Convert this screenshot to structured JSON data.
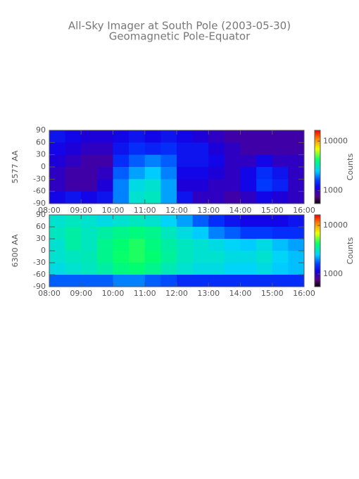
{
  "title": "All-Sky Imager at South Pole (2003-05-30)",
  "subtitle": "Geomagnetic Pole-Equator",
  "chart_data": [
    {
      "type": "heatmap",
      "ylabel": "5577 AA",
      "zlabel": "Counts",
      "log_z": true,
      "xlim": [
        8,
        16
      ],
      "xticks": [
        {
          "value": 8,
          "label": "08:00"
        },
        {
          "value": 9,
          "label": "09:00"
        },
        {
          "value": 10,
          "label": "10:00"
        },
        {
          "value": 11,
          "label": "11:00"
        },
        {
          "value": 12,
          "label": "12:00"
        },
        {
          "value": 13,
          "label": "13:00"
        },
        {
          "value": 14,
          "label": "14:00"
        },
        {
          "value": 15,
          "label": "15:00"
        },
        {
          "value": 16,
          "label": "16:00"
        }
      ],
      "ylim": [
        -90,
        90
      ],
      "yticks": [
        -90,
        -60,
        -30,
        0,
        30,
        60,
        90
      ],
      "zlim": [
        550,
        16500
      ],
      "zticks": [
        1000,
        10000
      ],
      "xbins": [
        8,
        8.5,
        9,
        9.5,
        10,
        10.5,
        11,
        11.5,
        12,
        12.5,
        13,
        13.5,
        14,
        14.5,
        15,
        15.5,
        16
      ],
      "ybins": [
        90,
        60,
        30,
        0,
        -30,
        -60,
        -90
      ],
      "z": [
        [
          1300,
          1200,
          1100,
          1100,
          1200,
          1300,
          1200,
          1300,
          1200,
          1100,
          1000,
          900,
          900,
          900,
          900,
          900
        ],
        [
          1200,
          1100,
          1000,
          1000,
          1300,
          1500,
          1400,
          1500,
          1300,
          1300,
          1100,
          1000,
          900,
          900,
          900,
          900
        ],
        [
          1100,
          1000,
          900,
          900,
          1500,
          1800,
          2000,
          1800,
          1300,
          1300,
          1200,
          1000,
          1000,
          1200,
          1000,
          1000
        ],
        [
          1000,
          900,
          900,
          1000,
          1800,
          2200,
          2500,
          2000,
          1200,
          1200,
          1100,
          1000,
          1200,
          1500,
          1300,
          1000
        ],
        [
          1000,
          900,
          900,
          1100,
          2000,
          2800,
          3000,
          2200,
          1100,
          1100,
          1000,
          1000,
          1200,
          1600,
          1400,
          1000
        ],
        [
          1200,
          1300,
          1200,
          1300,
          2000,
          3000,
          3200,
          2200,
          1300,
          1000,
          1000,
          900,
          1000,
          1200,
          1100,
          1000
        ]
      ]
    },
    {
      "type": "heatmap",
      "ylabel": "6300 AA",
      "zlabel": "Counts",
      "log_z": true,
      "xlim": [
        8,
        16
      ],
      "xticks": [
        {
          "value": 8,
          "label": "08:00"
        },
        {
          "value": 9,
          "label": "09:00"
        },
        {
          "value": 10,
          "label": "10:00"
        },
        {
          "value": 11,
          "label": "11:00"
        },
        {
          "value": 12,
          "label": "12:00"
        },
        {
          "value": 13,
          "label": "13:00"
        },
        {
          "value": 14,
          "label": "14:00"
        },
        {
          "value": 15,
          "label": "15:00"
        },
        {
          "value": 16,
          "label": "16:00"
        }
      ],
      "ylim": [
        -90,
        90
      ],
      "yticks": [
        -90,
        -60,
        -30,
        0,
        30,
        60,
        90
      ],
      "zlim": [
        550,
        16500
      ],
      "zticks": [
        1000,
        10000
      ],
      "xbins": [
        8,
        8.5,
        9,
        9.5,
        10,
        10.5,
        11,
        11.5,
        12,
        12.5,
        13,
        13.5,
        14,
        14.5,
        15,
        15.5,
        16
      ],
      "ybins": [
        90,
        60,
        30,
        0,
        -30,
        -60,
        -90
      ],
      "z": [
        [
          3000,
          3200,
          3000,
          2800,
          3000,
          3200,
          3000,
          2600,
          2200,
          1800,
          1500,
          1300,
          1200,
          1200,
          1200,
          1300
        ],
        [
          3200,
          3500,
          3200,
          3500,
          3800,
          4000,
          3800,
          3200,
          2800,
          2500,
          2000,
          1800,
          1600,
          1600,
          1500,
          1500
        ],
        [
          3000,
          3500,
          3200,
          3800,
          4200,
          4500,
          4000,
          3500,
          3200,
          3000,
          2800,
          2600,
          2500,
          2800,
          2400,
          2200
        ],
        [
          3000,
          3200,
          3300,
          3800,
          4300,
          4500,
          4200,
          3600,
          3200,
          3000,
          3000,
          2800,
          2800,
          3000,
          2600,
          2400
        ],
        [
          2800,
          3000,
          3200,
          3500,
          4000,
          4200,
          3800,
          3300,
          3000,
          2800,
          2800,
          2600,
          2600,
          2800,
          2500,
          2400
        ],
        [
          1800,
          1800,
          1800,
          1800,
          2000,
          2000,
          1800,
          1700,
          1500,
          1500,
          1500,
          1500,
          1500,
          1500,
          1500,
          1500
        ]
      ]
    }
  ]
}
